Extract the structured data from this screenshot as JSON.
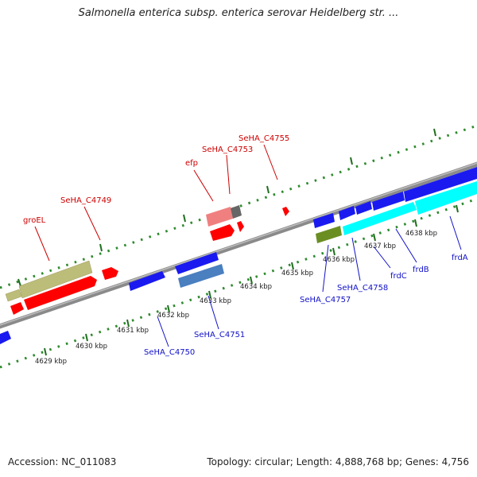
{
  "title": "Salmonella enterica subsp. enterica serovar Heidelberg str. ...",
  "accession": "Accession: NC_011083",
  "topology": "Topology: circular; Length: 4,888,768 bp; Genes: 4,756",
  "colors": {
    "backbone": "#888888",
    "dots": "#2e8b2e",
    "plus_label": "#cc0000",
    "minus_label": "#1010c8",
    "olive": "#bdbd7a",
    "red": "#ff0000",
    "pink": "#f08080",
    "blue": "#1a1af0",
    "steel": "#4a7fc0",
    "cyan": "#00ffff",
    "green": "#6b8e23",
    "gray": "#666666"
  },
  "ticks": [
    {
      "label": "4629 kbp"
    },
    {
      "label": "4630 kbp"
    },
    {
      "label": "4631 kbp"
    },
    {
      "label": "4632 kbp"
    },
    {
      "label": "4633 kbp"
    },
    {
      "label": "4634 kbp"
    },
    {
      "label": "4635 kbp"
    },
    {
      "label": "4636 kbp"
    },
    {
      "label": "4637 kbp"
    },
    {
      "label": "4638 kbp"
    }
  ],
  "labels_plus": [
    {
      "text": "groEL"
    },
    {
      "text": "SeHA_C4749"
    },
    {
      "text": "efp"
    },
    {
      "text": "SeHA_C4753"
    },
    {
      "text": "SeHA_C4755"
    }
  ],
  "labels_minus": [
    {
      "text": "SeHA_C4750"
    },
    {
      "text": "SeHA_C4751"
    },
    {
      "text": "SeHA_C4757"
    },
    {
      "text": "SeHA_C4758"
    },
    {
      "text": "frdC"
    },
    {
      "text": "frdB"
    },
    {
      "text": "frdA"
    }
  ]
}
